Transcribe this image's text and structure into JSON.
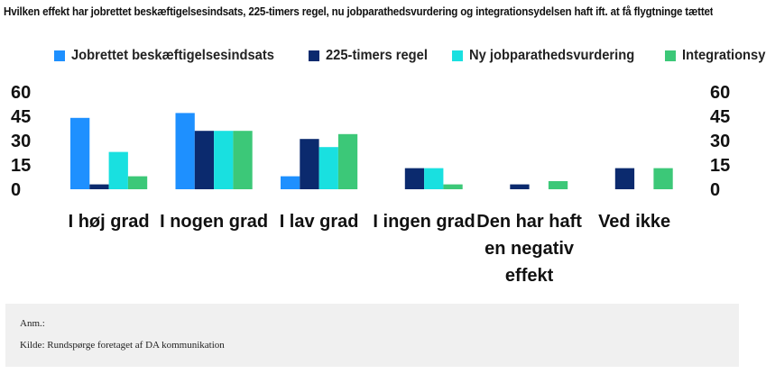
{
  "title": "Hvilken effekt har jobrettet beskæftigelsesindsats, 225-timers regel, nu jobparathedsvurdering og integrationsydelsen haft ift. at få flygtninge tættet på job",
  "notes": {
    "anm": "Anm.:",
    "kilde": "Kilde: Rundspørge foretaget af DA kommunikation"
  },
  "chart_data": {
    "type": "bar",
    "categories": [
      "I høj grad",
      "I nogen grad",
      "I lav grad",
      "I ingen grad",
      "Den har haft en negativ effekt",
      "Ved ikke"
    ],
    "category_lines": [
      [
        "I høj grad"
      ],
      [
        "I nogen grad"
      ],
      [
        "I lav grad"
      ],
      [
        "I ingen grad"
      ],
      [
        "Den har haft",
        "en negativ",
        "effekt"
      ],
      [
        "Ved ikke"
      ]
    ],
    "series": [
      {
        "name": "Jobrettet beskæftigelsesindsats",
        "color": "#1e90ff",
        "values": [
          44,
          47,
          8,
          0,
          0,
          0
        ]
      },
      {
        "name": "225-timers regel",
        "color": "#0b2a6e",
        "values": [
          3,
          36,
          31,
          13,
          3,
          13
        ]
      },
      {
        "name": "Ny jobparathedsvurdering",
        "color": "#19e0e0",
        "values": [
          23,
          36,
          26,
          13,
          0,
          0
        ]
      },
      {
        "name": "Integrationsydelse",
        "color": "#3cc878",
        "values": [
          8,
          36,
          34,
          3,
          5,
          13
        ]
      }
    ],
    "ylim": [
      0,
      60
    ],
    "yticks": [
      0,
      15,
      30,
      45,
      60
    ],
    "axes": "left and right",
    "grid": false,
    "legend": "top"
  }
}
